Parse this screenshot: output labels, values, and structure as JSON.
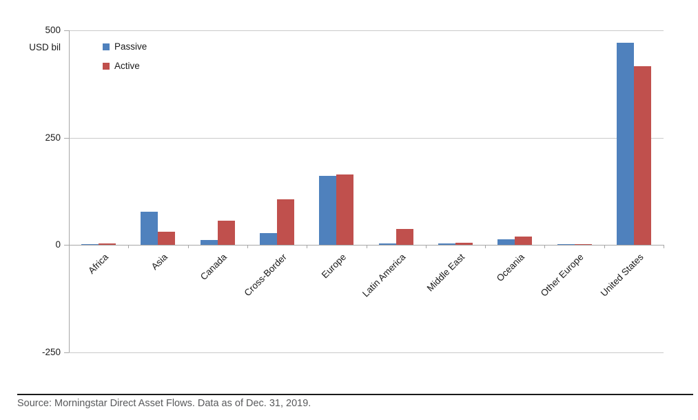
{
  "chart_data": {
    "type": "bar",
    "title": "",
    "unit_label": "USD bil",
    "categories": [
      "Africa",
      "Asia",
      "Canada",
      "Cross-Border",
      "Europe",
      "Latin America",
      "Middle East",
      "Oceania",
      "Other Europe",
      "United States"
    ],
    "series": [
      {
        "name": "Passive",
        "color": "#4F81BD",
        "values": [
          1,
          77,
          12,
          28,
          162,
          4,
          4,
          13,
          2,
          471
        ]
      },
      {
        "name": "Active",
        "color": "#C0504D",
        "values": [
          4,
          31,
          57,
          106,
          164,
          38,
          6,
          20,
          1,
          416
        ]
      }
    ],
    "ylim": [
      -250,
      500
    ],
    "yticks": [
      500,
      250,
      0,
      -250
    ],
    "grid": true,
    "legend_position": "top-left-inside",
    "colors": {
      "gridline": "#c9c9c9",
      "axis": "#a6a6a6",
      "text": "#1a1a1a",
      "source_text": "#58595b"
    }
  },
  "footer": {
    "source_text": "Source: Morningstar Direct Asset Flows. Data as of Dec. 31, 2019."
  }
}
